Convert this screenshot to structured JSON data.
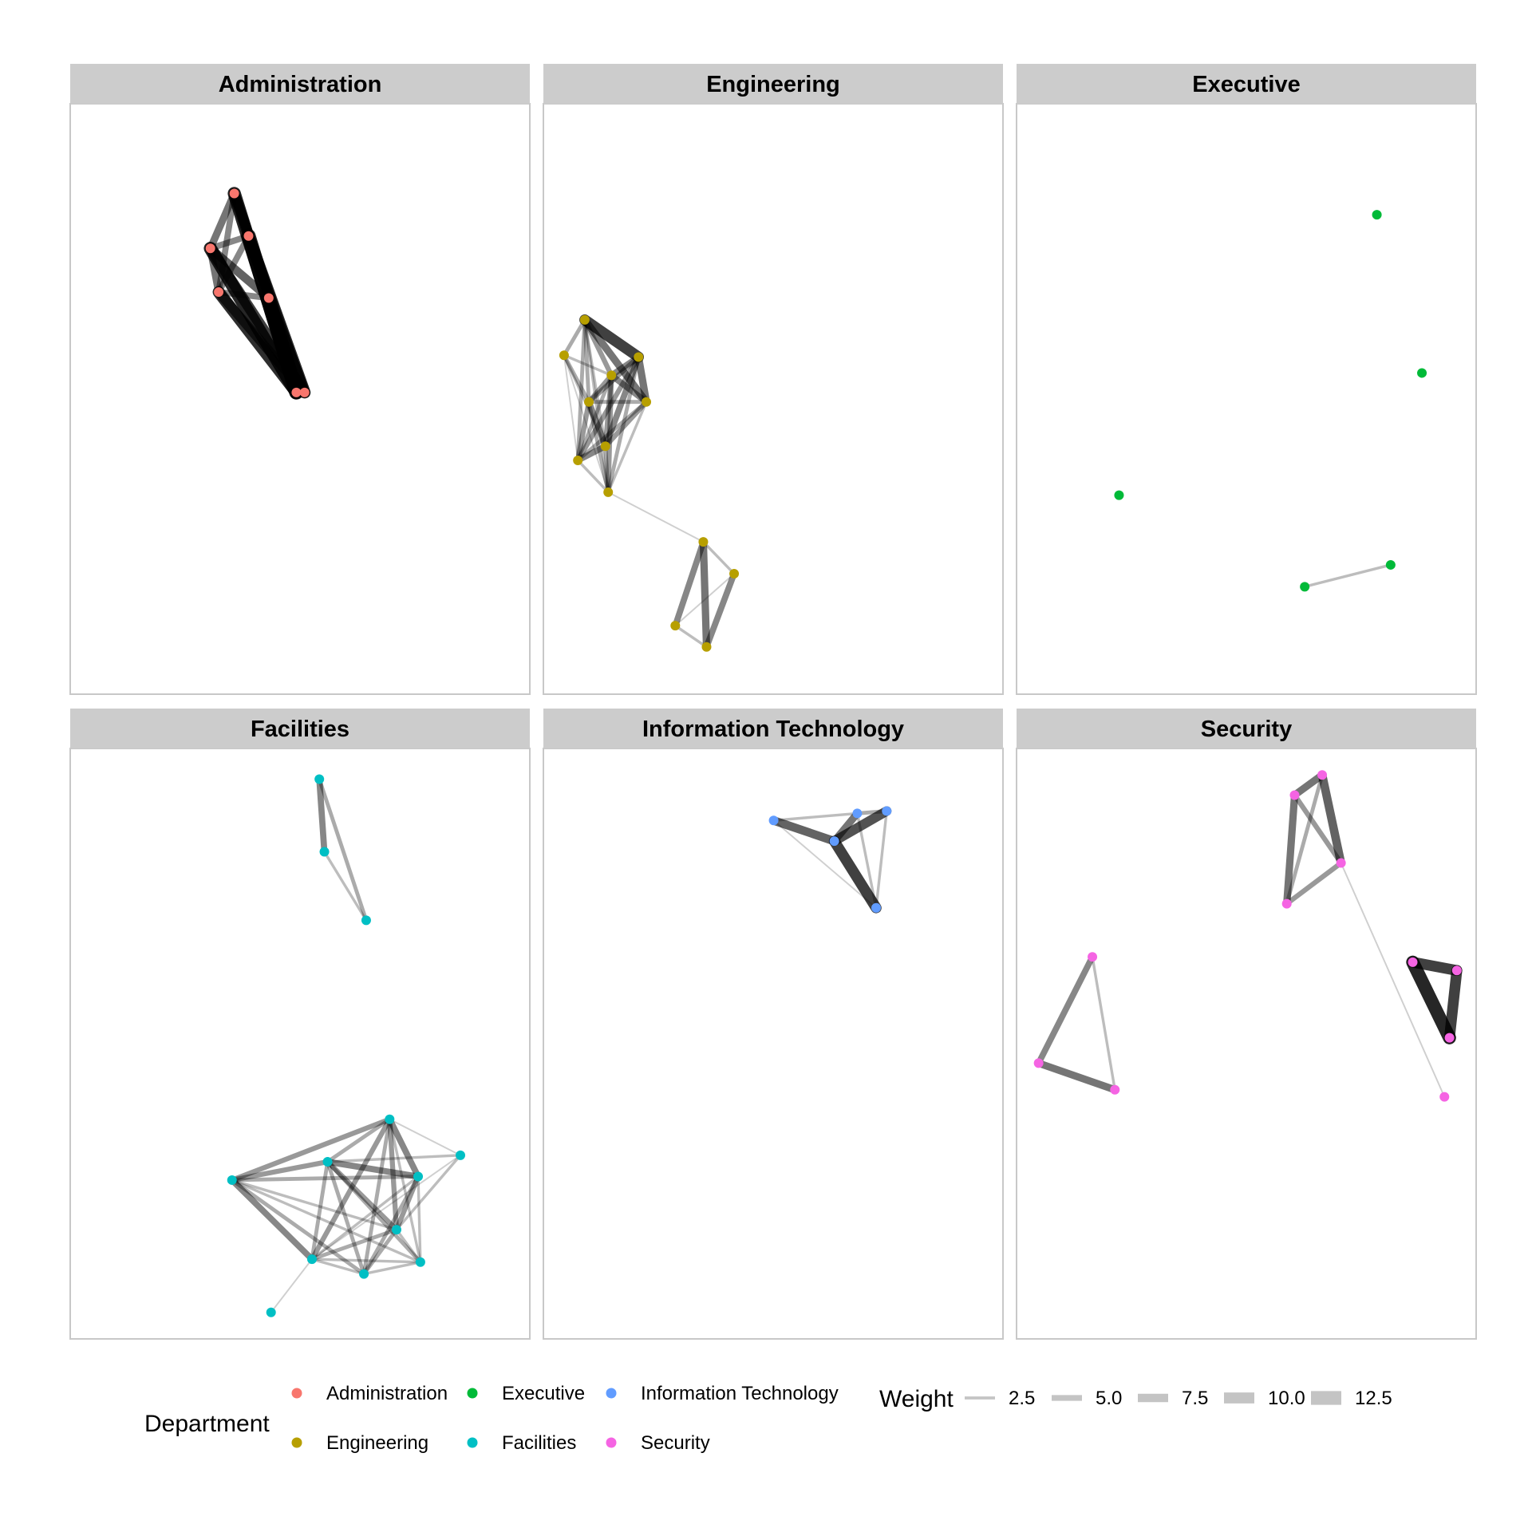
{
  "chart_data": {
    "type": "network",
    "facet_layout": "3 columns x 2 rows",
    "legend_placement": "bottom",
    "panels": [
      {
        "title": "Administration",
        "color": "#F8766D",
        "nodes": [
          [
            0.357,
            0.152
          ],
          [
            0.305,
            0.245
          ],
          [
            0.388,
            0.224
          ],
          [
            0.323,
            0.319
          ],
          [
            0.432,
            0.329
          ],
          [
            0.492,
            0.489
          ],
          [
            0.51,
            0.489
          ]
        ],
        "edges": [
          [
            0,
            1,
            6
          ],
          [
            0,
            2,
            9
          ],
          [
            0,
            3,
            5
          ],
          [
            0,
            4,
            7
          ],
          [
            0,
            5,
            11
          ],
          [
            0,
            6,
            8
          ],
          [
            1,
            2,
            5
          ],
          [
            1,
            3,
            6
          ],
          [
            1,
            4,
            7
          ],
          [
            1,
            5,
            11
          ],
          [
            1,
            6,
            9
          ],
          [
            2,
            3,
            5
          ],
          [
            2,
            4,
            7
          ],
          [
            2,
            5,
            12
          ],
          [
            2,
            6,
            10
          ],
          [
            3,
            4,
            5
          ],
          [
            3,
            5,
            10
          ],
          [
            3,
            6,
            8
          ],
          [
            4,
            5,
            11
          ],
          [
            4,
            6,
            9
          ],
          [
            5,
            6,
            3
          ]
        ]
      },
      {
        "title": "Engineering",
        "color": "#B79F00",
        "nodes": [
          [
            0.09,
            0.366
          ],
          [
            0.045,
            0.426
          ],
          [
            0.207,
            0.429
          ],
          [
            0.148,
            0.46
          ],
          [
            0.099,
            0.505
          ],
          [
            0.224,
            0.505
          ],
          [
            0.135,
            0.58
          ],
          [
            0.075,
            0.604
          ],
          [
            0.141,
            0.658
          ],
          [
            0.348,
            0.742
          ],
          [
            0.415,
            0.796
          ],
          [
            0.287,
            0.884
          ],
          [
            0.355,
            0.92
          ]
        ],
        "edges": [
          [
            0,
            1,
            3
          ],
          [
            0,
            2,
            9
          ],
          [
            0,
            3,
            4
          ],
          [
            0,
            4,
            3
          ],
          [
            0,
            5,
            6
          ],
          [
            0,
            6,
            2
          ],
          [
            0,
            7,
            3
          ],
          [
            0,
            8,
            2
          ],
          [
            1,
            3,
            2
          ],
          [
            1,
            4,
            3
          ],
          [
            1,
            6,
            2
          ],
          [
            1,
            7,
            1
          ],
          [
            1,
            8,
            1
          ],
          [
            2,
            3,
            5
          ],
          [
            2,
            4,
            4
          ],
          [
            2,
            5,
            6
          ],
          [
            2,
            6,
            5
          ],
          [
            2,
            7,
            4
          ],
          [
            2,
            8,
            3
          ],
          [
            3,
            4,
            4
          ],
          [
            3,
            5,
            5
          ],
          [
            3,
            6,
            4
          ],
          [
            3,
            7,
            3
          ],
          [
            3,
            8,
            4
          ],
          [
            4,
            5,
            3
          ],
          [
            4,
            6,
            5
          ],
          [
            4,
            7,
            4
          ],
          [
            4,
            8,
            3
          ],
          [
            5,
            6,
            4
          ],
          [
            5,
            7,
            3
          ],
          [
            5,
            8,
            2
          ],
          [
            6,
            7,
            5
          ],
          [
            6,
            8,
            3
          ],
          [
            7,
            8,
            2
          ],
          [
            8,
            9,
            1
          ],
          [
            9,
            10,
            2
          ],
          [
            9,
            11,
            5
          ],
          [
            9,
            12,
            6
          ],
          [
            10,
            11,
            1
          ],
          [
            10,
            12,
            5
          ],
          [
            11,
            12,
            2
          ]
        ]
      },
      {
        "title": "Executive",
        "color": "#00BA38",
        "nodes": [
          [
            0.784,
            0.188
          ],
          [
            0.882,
            0.456
          ],
          [
            0.223,
            0.663
          ],
          [
            0.627,
            0.818
          ],
          [
            0.814,
            0.781
          ]
        ],
        "edges": [
          [
            3,
            4,
            2
          ]
        ]
      },
      {
        "title": "Facilities",
        "color": "#00BFC4",
        "nodes": [
          [
            0.542,
            0.052
          ],
          [
            0.553,
            0.175
          ],
          [
            0.644,
            0.291
          ],
          [
            0.695,
            0.628
          ],
          [
            0.849,
            0.689
          ],
          [
            0.56,
            0.7
          ],
          [
            0.352,
            0.731
          ],
          [
            0.757,
            0.725
          ],
          [
            0.71,
            0.815
          ],
          [
            0.526,
            0.865
          ],
          [
            0.762,
            0.87
          ],
          [
            0.639,
            0.89
          ],
          [
            0.437,
            0.955
          ]
        ],
        "edges": [
          [
            0,
            1,
            5
          ],
          [
            0,
            2,
            3
          ],
          [
            1,
            2,
            2
          ],
          [
            3,
            4,
            1
          ],
          [
            3,
            5,
            3
          ],
          [
            3,
            6,
            4
          ],
          [
            3,
            7,
            5
          ],
          [
            3,
            8,
            4
          ],
          [
            3,
            9,
            4
          ],
          [
            3,
            10,
            2
          ],
          [
            3,
            11,
            3
          ],
          [
            4,
            5,
            2
          ],
          [
            4,
            8,
            2
          ],
          [
            4,
            9,
            1
          ],
          [
            5,
            6,
            4
          ],
          [
            5,
            7,
            5
          ],
          [
            5,
            8,
            4
          ],
          [
            5,
            9,
            3
          ],
          [
            5,
            10,
            3
          ],
          [
            5,
            11,
            3
          ],
          [
            6,
            7,
            3
          ],
          [
            6,
            8,
            2
          ],
          [
            6,
            9,
            5
          ],
          [
            6,
            11,
            3
          ],
          [
            6,
            10,
            2
          ],
          [
            7,
            8,
            4
          ],
          [
            7,
            9,
            2
          ],
          [
            7,
            10,
            2
          ],
          [
            7,
            11,
            3
          ],
          [
            8,
            9,
            3
          ],
          [
            8,
            10,
            2
          ],
          [
            8,
            11,
            3
          ],
          [
            9,
            10,
            2
          ],
          [
            9,
            11,
            2
          ],
          [
            10,
            11,
            2
          ],
          [
            9,
            12,
            1
          ]
        ]
      },
      {
        "title": "Information Technology",
        "color": "#619CFF",
        "nodes": [
          [
            0.501,
            0.122
          ],
          [
            0.683,
            0.11
          ],
          [
            0.747,
            0.106
          ],
          [
            0.633,
            0.157
          ],
          [
            0.724,
            0.27
          ]
        ],
        "edges": [
          [
            0,
            1,
            2
          ],
          [
            0,
            3,
            7
          ],
          [
            0,
            4,
            1
          ],
          [
            1,
            2,
            3
          ],
          [
            1,
            3,
            6
          ],
          [
            2,
            3,
            8
          ],
          [
            2,
            4,
            2
          ],
          [
            3,
            4,
            9
          ],
          [
            1,
            4,
            2
          ]
        ]
      },
      {
        "title": "Security",
        "color": "#F564E3",
        "nodes": [
          [
            0.665,
            0.045
          ],
          [
            0.605,
            0.079
          ],
          [
            0.706,
            0.194
          ],
          [
            0.588,
            0.263
          ],
          [
            0.862,
            0.362
          ],
          [
            0.958,
            0.376
          ],
          [
            0.942,
            0.49
          ],
          [
            0.165,
            0.353
          ],
          [
            0.048,
            0.533
          ],
          [
            0.214,
            0.578
          ],
          [
            0.931,
            0.59
          ]
        ],
        "edges": [
          [
            0,
            1,
            6
          ],
          [
            0,
            2,
            7
          ],
          [
            0,
            3,
            3
          ],
          [
            1,
            2,
            4
          ],
          [
            1,
            3,
            6
          ],
          [
            2,
            3,
            4
          ],
          [
            2,
            10,
            1
          ],
          [
            4,
            5,
            9
          ],
          [
            4,
            6,
            11
          ],
          [
            5,
            6,
            9
          ],
          [
            7,
            8,
            5
          ],
          [
            7,
            9,
            2
          ],
          [
            8,
            9,
            6
          ]
        ]
      }
    ],
    "legend": {
      "department": {
        "title": "Department",
        "items": [
          {
            "label": "Administration",
            "color": "#F8766D"
          },
          {
            "label": "Engineering",
            "color": "#B79F00"
          },
          {
            "label": "Executive",
            "color": "#00BA38"
          },
          {
            "label": "Facilities",
            "color": "#00BFC4"
          },
          {
            "label": "Information Technology",
            "color": "#619CFF"
          },
          {
            "label": "Security",
            "color": "#F564E3"
          }
        ]
      },
      "weight": {
        "title": "Weight",
        "items": [
          {
            "label": "2.5",
            "value": 2.5
          },
          {
            "label": "5.0",
            "value": 5.0
          },
          {
            "label": "7.5",
            "value": 7.5
          },
          {
            "label": "10.0",
            "value": 10.0
          },
          {
            "label": "12.5",
            "value": 12.5
          }
        ]
      }
    }
  }
}
